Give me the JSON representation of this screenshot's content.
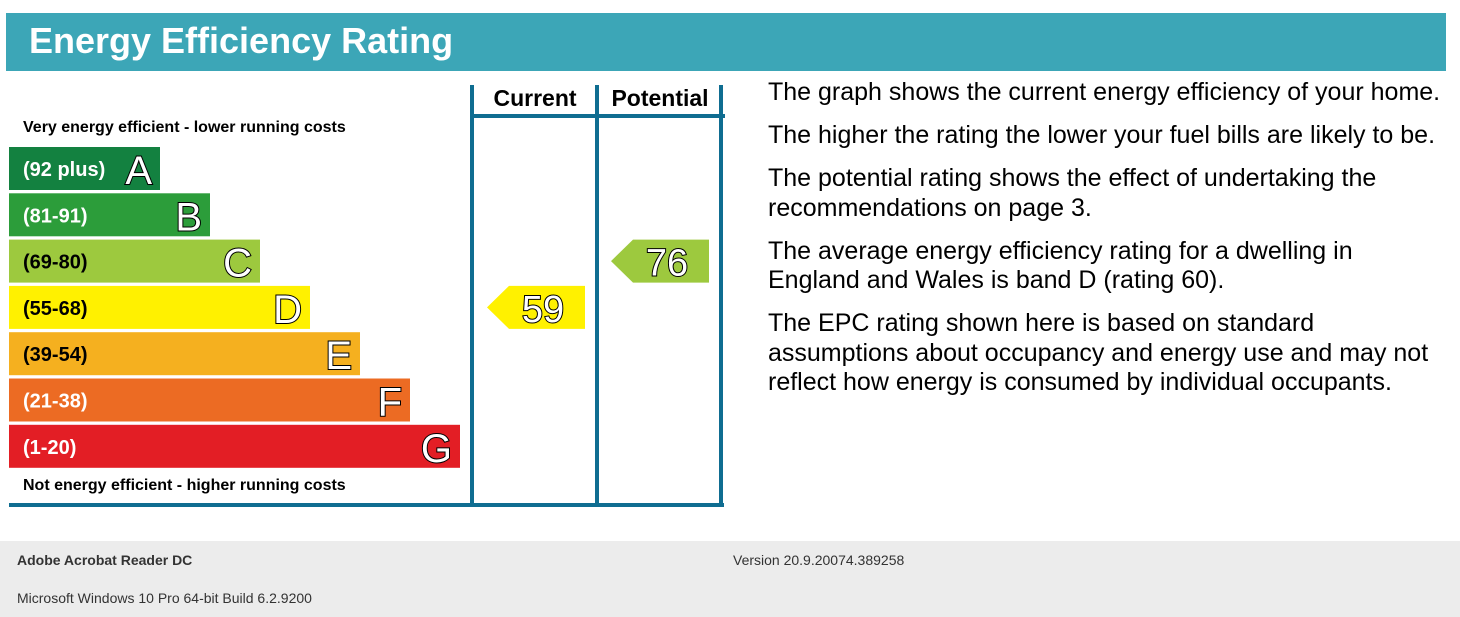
{
  "header": {
    "title": "Energy Efficiency Rating"
  },
  "chart_data": {
    "type": "bar",
    "title": "Energy Efficiency Rating",
    "top_label": "Very energy efficient - lower running costs",
    "bottom_label": "Not energy efficient - higher running costs",
    "bands": [
      {
        "range": "(92 plus)",
        "letter": "A",
        "min": 92,
        "max": 100,
        "color": "#138140"
      },
      {
        "range": "(81-91)",
        "letter": "B",
        "min": 81,
        "max": 91,
        "color": "#2c9d3a"
      },
      {
        "range": "(69-80)",
        "letter": "C",
        "min": 69,
        "max": 80,
        "color": "#9dc93e"
      },
      {
        "range": "(55-68)",
        "letter": "D",
        "min": 55,
        "max": 68,
        "color": "#fff100"
      },
      {
        "range": "(39-54)",
        "letter": "E",
        "min": 39,
        "max": 54,
        "color": "#f5b01f"
      },
      {
        "range": "(21-38)",
        "letter": "F",
        "min": 21,
        "max": 38,
        "color": "#ec6b23"
      },
      {
        "range": "(1-20)",
        "letter": "G",
        "min": 1,
        "max": 20,
        "color": "#e31e25"
      }
    ],
    "columns": [
      "Current",
      "Potential"
    ],
    "ratings": [
      {
        "name": "Current",
        "value": 59,
        "band": "D",
        "color": "#fff100"
      },
      {
        "name": "Potential",
        "value": 76,
        "band": "C",
        "color": "#9dc93e"
      }
    ],
    "frame_color": "#0f6d91"
  },
  "description": [
    "The graph shows the current energy efficiency of your home.",
    "The higher the rating the lower your fuel bills are likely to be.",
    "The potential rating shows the effect of undertaking the recommendations on page 3.",
    "The average energy efficiency rating for a dwelling in England and Wales is band D (rating 60).",
    "The EPC rating shown here is based on standard assumptions about occupancy and energy use and may not reflect how energy is consumed by individual occupants."
  ],
  "footer": {
    "app_name": "Adobe Acrobat Reader DC",
    "version": "Version 20.9.20074.389258",
    "os": "Microsoft Windows 10 Pro 64-bit Build 6.2.9200"
  }
}
